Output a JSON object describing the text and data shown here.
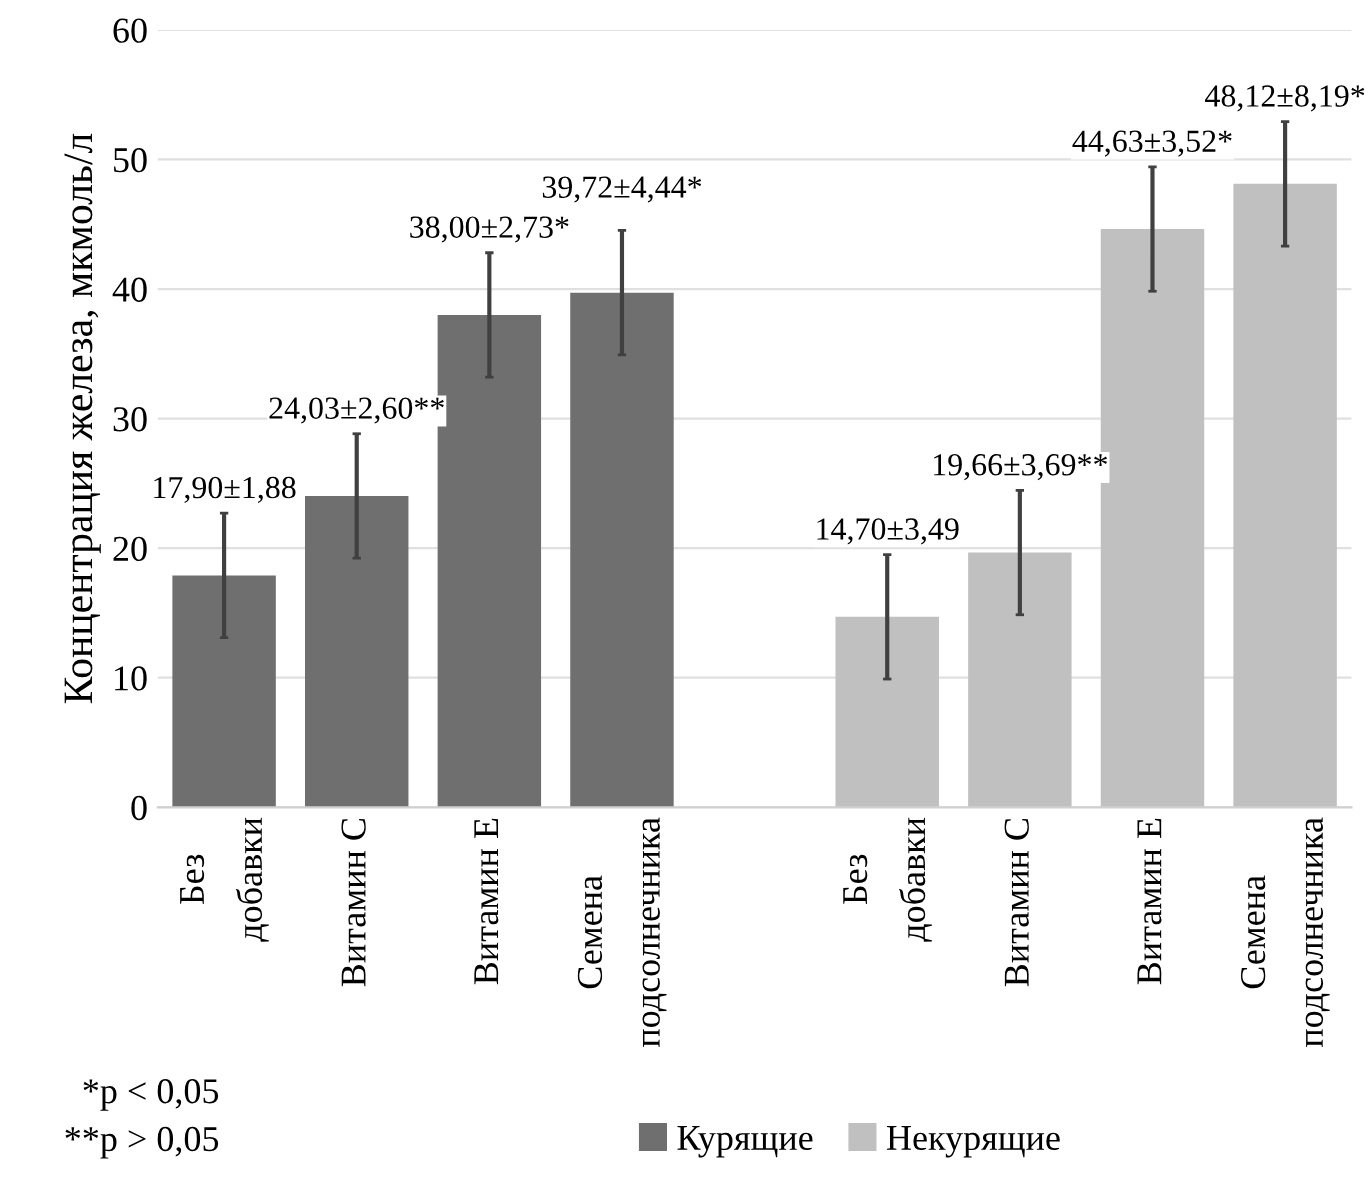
{
  "chart_data": {
    "type": "bar",
    "ylabel": "Концентрация железа, мкмоль/л",
    "categories": [
      "Без\nдобавки",
      "Витамин С",
      "Витамин Е",
      "Семена\nподсолнечника",
      null,
      "Без\nдобавки",
      "Витамин С",
      "Витамин Е",
      "Семена\nподсолнечника"
    ],
    "series": [
      {
        "name": "Курящие",
        "color": "#6f6f6f",
        "values": [
          17.9,
          24.03,
          38.0,
          39.72,
          null,
          null,
          null,
          null,
          null
        ],
        "errors": [
          4.8,
          4.8,
          4.8,
          4.8,
          null,
          null,
          null,
          null,
          null
        ],
        "value_labels": [
          "17,90±1,88",
          "24,03±2,60**",
          "38,00±2,73*",
          "39,72±4,44*",
          null,
          null,
          null,
          null,
          null
        ]
      },
      {
        "name": "Некурящие",
        "color": "#c0c0c0",
        "values": [
          null,
          null,
          null,
          null,
          null,
          14.7,
          19.66,
          44.63,
          48.12
        ],
        "errors": [
          null,
          null,
          null,
          null,
          null,
          4.8,
          4.8,
          4.8,
          4.8
        ],
        "value_labels": [
          null,
          null,
          null,
          null,
          null,
          "14,70±3,49",
          "19,66±3,69**",
          "44,63±3,52*",
          "48,12±8,19*"
        ]
      }
    ],
    "ylim": [
      0,
      60
    ],
    "yticks": [
      0,
      10,
      20,
      30,
      40,
      50,
      60
    ],
    "grid": "y",
    "legend": "bottom",
    "annotations": [
      "*p < 0,05",
      "**p > 0,05"
    ]
  }
}
